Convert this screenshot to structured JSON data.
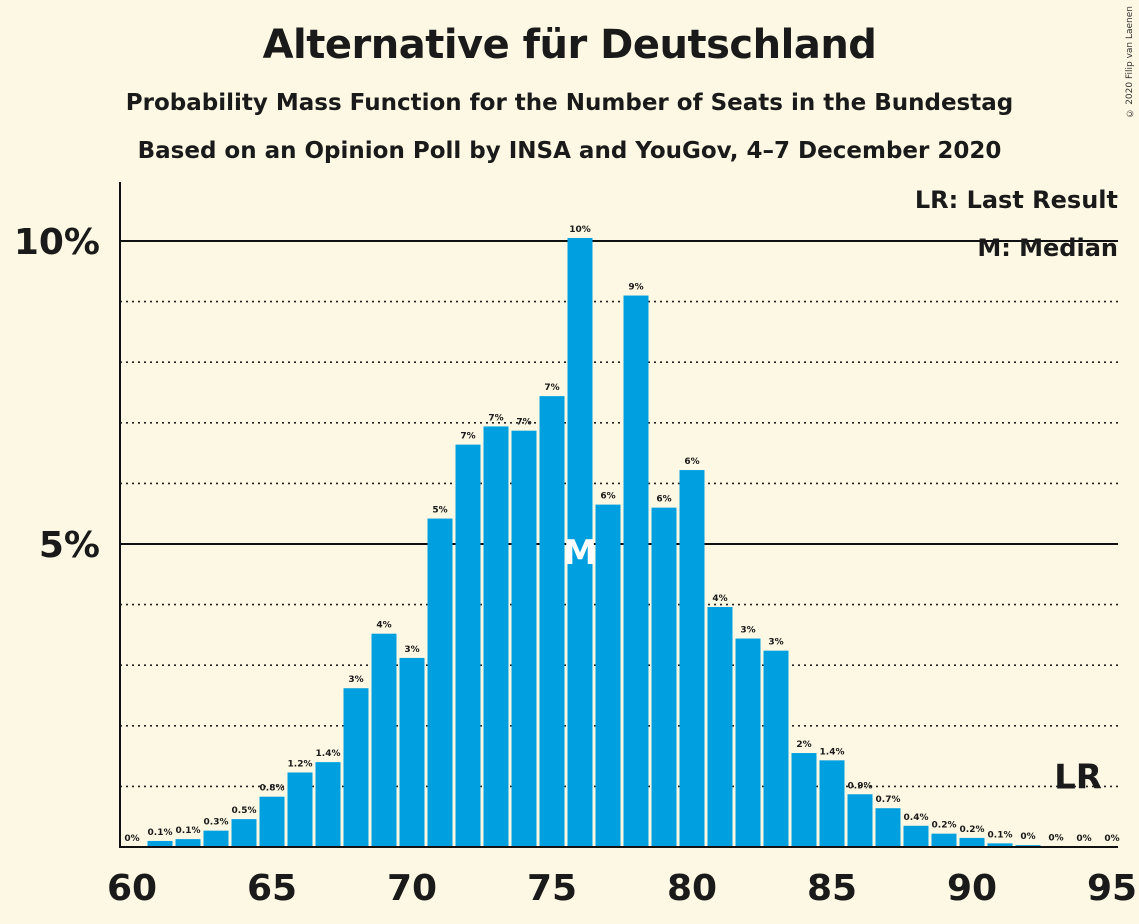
{
  "copyright": "© 2020 Filip van Laenen",
  "chart_data": {
    "type": "bar",
    "title": "Alternative für Deutschland",
    "subtitle": "Probability Mass Function for the Number of Seats in the Bundestag",
    "subtitle2": "Based on an Opinion Poll by INSA and YouGov, 4–7 December 2020",
    "legend": {
      "last_result": "LR: Last Result",
      "median": "M: Median"
    },
    "y_ticks": [
      {
        "value": 5,
        "label": "5%"
      },
      {
        "value": 10,
        "label": "10%"
      }
    ],
    "x_ticks": [
      {
        "value": 60,
        "label": "60"
      },
      {
        "value": 65,
        "label": "65"
      },
      {
        "value": 70,
        "label": "70"
      },
      {
        "value": 75,
        "label": "75"
      },
      {
        "value": 80,
        "label": "80"
      },
      {
        "value": 85,
        "label": "85"
      },
      {
        "value": 90,
        "label": "90"
      },
      {
        "value": 95,
        "label": "95"
      }
    ],
    "xlim": [
      60,
      95
    ],
    "ylim": [
      0,
      10.95
    ],
    "bar_color": "#009fe0",
    "median_seat": 76,
    "median_label": "M",
    "last_result_seat": 94,
    "last_result_label": "LR",
    "bars": [
      {
        "seat": 60,
        "value": 0.0,
        "label": "0%"
      },
      {
        "seat": 61,
        "value": 0.1,
        "label": "0.1%"
      },
      {
        "seat": 62,
        "value": 0.13,
        "label": "0.1%"
      },
      {
        "seat": 63,
        "value": 0.27,
        "label": "0.3%"
      },
      {
        "seat": 64,
        "value": 0.46,
        "label": "0.5%"
      },
      {
        "seat": 65,
        "value": 0.83,
        "label": "0.8%"
      },
      {
        "seat": 66,
        "value": 1.23,
        "label": "1.2%"
      },
      {
        "seat": 67,
        "value": 1.4,
        "label": "1.4%"
      },
      {
        "seat": 68,
        "value": 2.62,
        "label": "3%"
      },
      {
        "seat": 69,
        "value": 3.52,
        "label": "4%"
      },
      {
        "seat": 70,
        "value": 3.12,
        "label": "3%"
      },
      {
        "seat": 71,
        "value": 5.42,
        "label": "5%"
      },
      {
        "seat": 72,
        "value": 6.64,
        "label": "7%"
      },
      {
        "seat": 73,
        "value": 6.94,
        "label": "7%"
      },
      {
        "seat": 74,
        "value": 6.87,
        "label": "7%"
      },
      {
        "seat": 75,
        "value": 7.44,
        "label": "7%"
      },
      {
        "seat": 76,
        "value": 10.05,
        "label": "10%"
      },
      {
        "seat": 77,
        "value": 5.65,
        "label": "6%"
      },
      {
        "seat": 78,
        "value": 9.1,
        "label": "9%"
      },
      {
        "seat": 79,
        "value": 5.6,
        "label": "6%"
      },
      {
        "seat": 80,
        "value": 6.22,
        "label": "6%"
      },
      {
        "seat": 81,
        "value": 3.96,
        "label": "4%"
      },
      {
        "seat": 82,
        "value": 3.44,
        "label": "3%"
      },
      {
        "seat": 83,
        "value": 3.24,
        "label": "3%"
      },
      {
        "seat": 84,
        "value": 1.55,
        "label": "2%"
      },
      {
        "seat": 85,
        "value": 1.43,
        "label": "1.4%"
      },
      {
        "seat": 86,
        "value": 0.87,
        "label": "0.9%"
      },
      {
        "seat": 87,
        "value": 0.64,
        "label": "0.7%"
      },
      {
        "seat": 88,
        "value": 0.35,
        "label": "0.4%"
      },
      {
        "seat": 89,
        "value": 0.22,
        "label": "0.2%"
      },
      {
        "seat": 90,
        "value": 0.15,
        "label": "0.2%"
      },
      {
        "seat": 91,
        "value": 0.06,
        "label": "0.1%"
      },
      {
        "seat": 92,
        "value": 0.03,
        "label": "0%"
      },
      {
        "seat": 93,
        "value": 0.01,
        "label": "0%"
      },
      {
        "seat": 94,
        "value": 0.0,
        "label": "0%"
      },
      {
        "seat": 95,
        "value": 0.0,
        "label": "0%"
      }
    ]
  }
}
